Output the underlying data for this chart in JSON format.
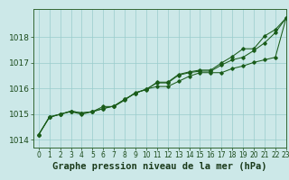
{
  "title": "",
  "xlabel": "Graphe pression niveau de la mer (hPa)",
  "ylabel": "",
  "bg_color": "#cce8e8",
  "grid_color": "#99cccc",
  "line_color": "#1a5c1a",
  "xlim": [
    -0.5,
    23
  ],
  "ylim": [
    1013.7,
    1019.1
  ],
  "yticks": [
    1014,
    1015,
    1016,
    1017,
    1018
  ],
  "xticks": [
    0,
    1,
    2,
    3,
    4,
    5,
    6,
    7,
    8,
    9,
    10,
    11,
    12,
    13,
    14,
    15,
    16,
    17,
    18,
    19,
    20,
    21,
    22,
    23
  ],
  "series1": [
    1014.2,
    1014.9,
    1015.0,
    1015.1,
    1015.0,
    1015.1,
    1015.3,
    1015.3,
    1015.55,
    1015.85,
    1015.95,
    1016.25,
    1016.25,
    1016.55,
    1016.65,
    1016.72,
    1016.72,
    1017.0,
    1017.25,
    1017.55,
    1017.55,
    1018.05,
    1018.3,
    1018.75
  ],
  "series2": [
    1014.2,
    1014.88,
    1015.0,
    1015.12,
    1015.05,
    1015.1,
    1015.22,
    1015.32,
    1015.58,
    1015.82,
    1015.98,
    1016.22,
    1016.22,
    1016.52,
    1016.62,
    1016.68,
    1016.68,
    1016.92,
    1017.12,
    1017.22,
    1017.48,
    1017.78,
    1018.18,
    1018.75
  ],
  "series3": [
    1014.2,
    1014.88,
    1015.0,
    1015.12,
    1015.05,
    1015.1,
    1015.22,
    1015.32,
    1015.58,
    1015.82,
    1015.98,
    1016.08,
    1016.08,
    1016.28,
    1016.48,
    1016.62,
    1016.62,
    1016.62,
    1016.78,
    1016.88,
    1017.02,
    1017.12,
    1017.22,
    1018.75
  ],
  "xlabel_fontsize": 7.5,
  "ytick_fontsize": 6.5,
  "xtick_fontsize": 5.5
}
